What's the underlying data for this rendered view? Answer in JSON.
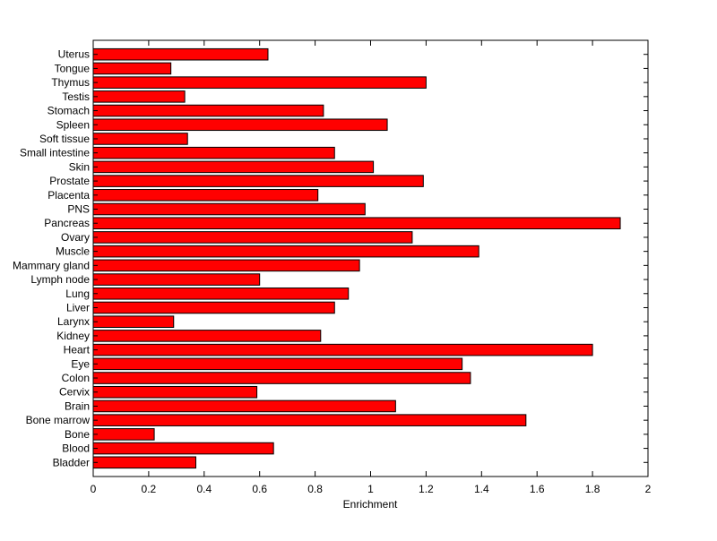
{
  "chart_data": {
    "type": "bar",
    "orientation": "horizontal",
    "title": "",
    "xlabel": "Enrichment",
    "ylabel": "",
    "xlim": [
      0,
      2
    ],
    "xticks": [
      "0",
      "0.2",
      "0.4",
      "0.6",
      "0.8",
      "1",
      "1.2",
      "1.4",
      "1.6",
      "1.8",
      "2"
    ],
    "bar_color": "#ff0000",
    "categories": [
      "Bladder",
      "Blood",
      "Bone",
      "Bone marrow",
      "Brain",
      "Cervix",
      "Colon",
      "Eye",
      "Heart",
      "Kidney",
      "Larynx",
      "Liver",
      "Lung",
      "Lymph node",
      "Mammary gland",
      "Muscle",
      "Ovary",
      "Pancreas",
      "PNS",
      "Placenta",
      "Prostate",
      "Skin",
      "Small intestine",
      "Soft tissue",
      "Spleen",
      "Stomach",
      "Testis",
      "Thymus",
      "Tongue",
      "Uterus"
    ],
    "values": [
      0.37,
      0.65,
      0.22,
      1.56,
      1.09,
      0.59,
      1.36,
      1.33,
      1.8,
      0.82,
      0.29,
      0.87,
      0.92,
      0.6,
      0.96,
      1.39,
      1.15,
      1.9,
      0.98,
      0.81,
      1.19,
      1.01,
      0.87,
      0.34,
      1.06,
      0.83,
      0.33,
      1.2,
      0.28,
      0.63
    ]
  }
}
